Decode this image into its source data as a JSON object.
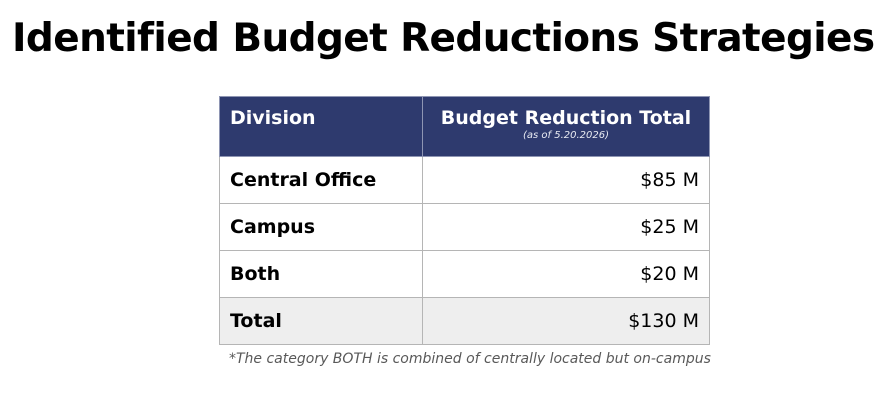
{
  "title": "Identified Budget Reductions Strategies",
  "table": {
    "headers": {
      "division": "Division",
      "total": "Budget Reduction Total",
      "total_sub": "(as of 5.20.2026)"
    },
    "rows": [
      {
        "division": "Central Office",
        "amount": "$85 M"
      },
      {
        "division": "Campus",
        "amount": "$25 M"
      },
      {
        "division": "Both",
        "amount": "$20 M"
      }
    ],
    "total_row": {
      "division": "Total",
      "amount": "$130 M"
    }
  },
  "footnote": "*The category BOTH is combined of centrally located but on-campus",
  "colors": {
    "header_bg": "#2e3a6e",
    "header_text": "#ffffff",
    "total_row_bg": "#eeeeee",
    "grid": "#b5b5b5",
    "footnote_text": "#595959"
  }
}
